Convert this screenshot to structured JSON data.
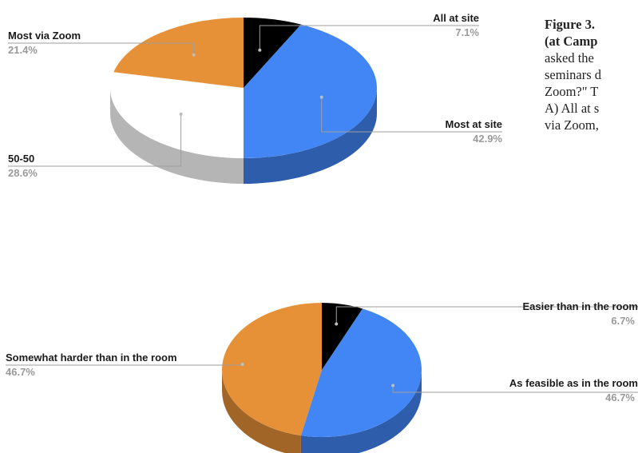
{
  "caption": {
    "title_lines": [
      "Figure 3.",
      "(at Camp"
    ],
    "body_lines": [
      "asked the",
      "seminars d",
      "Zoom?\" T",
      "A) All at s",
      "via Zoom,"
    ]
  },
  "colors": {
    "black": "#000000",
    "blue": "#4285f4",
    "orange": "#e69138",
    "white": "#ffffff",
    "leader_line": "#9e9e9e"
  },
  "chart_data": [
    {
      "type": "pie",
      "style": "3d",
      "title": "",
      "slices": [
        {
          "label": "All at site",
          "value": 7.1,
          "pct_label": "7.1%",
          "color": "#000000"
        },
        {
          "label": "Most at site",
          "value": 42.9,
          "pct_label": "42.9%",
          "color": "#4285f4"
        },
        {
          "label": "50-50",
          "value": 28.6,
          "pct_label": "28.6%",
          "color": "#ffffff"
        },
        {
          "label": "Most via Zoom",
          "value": 21.4,
          "pct_label": "21.4%",
          "color": "#e69138"
        }
      ]
    },
    {
      "type": "pie",
      "style": "3d",
      "title": "",
      "slices": [
        {
          "label": "Easier than in the room",
          "value": 6.7,
          "pct_label": "6.7%",
          "color": "#000000"
        },
        {
          "label": "As feasible as in the room",
          "value": 46.7,
          "pct_label": "46.7%",
          "color": "#4285f4"
        },
        {
          "label": "Somewhat harder than in the room",
          "value": 46.7,
          "pct_label": "46.7%",
          "color": "#e69138"
        }
      ]
    }
  ]
}
